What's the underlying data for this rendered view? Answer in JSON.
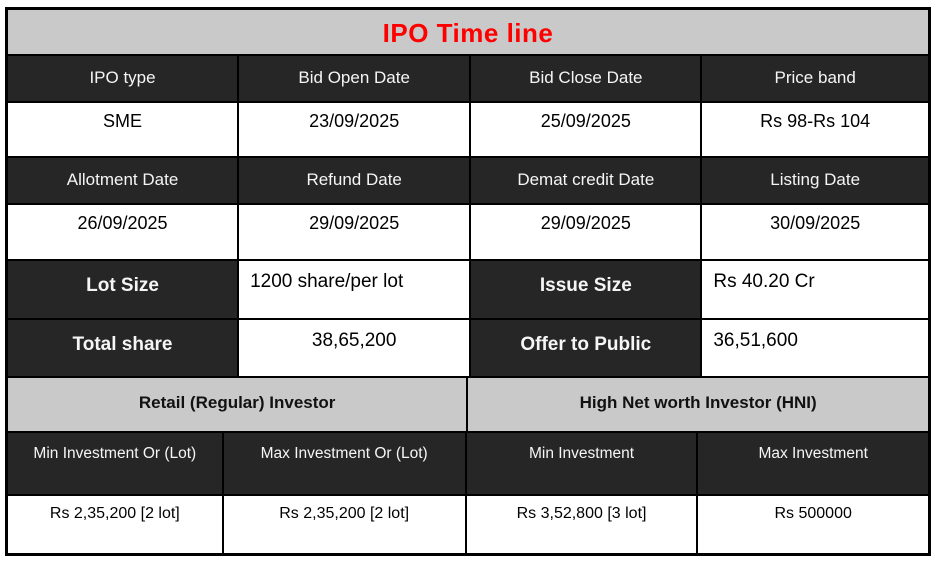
{
  "title": "IPO Time line",
  "colors": {
    "title_red": "#ff0000",
    "dark_cell": "#262626",
    "gray_cell": "#c9c9c9",
    "grid_line": "#000000"
  },
  "chart_data": {
    "type": "table",
    "title": "IPO Time line",
    "layout": "10 rows; black gridlines; dark header rows with white text; gray section bands",
    "rows": [
      [
        "IPO type",
        "Bid Open Date",
        "Bid Close Date",
        "Price band"
      ],
      [
        "SME",
        "23/09/2025",
        "25/09/2025",
        "Rs 98-Rs 104"
      ],
      [
        "Allotment Date",
        "Refund Date",
        "Demat credit Date",
        "Listing Date"
      ],
      [
        "26/09/2025",
        "29/09/2025",
        "29/09/2025",
        "30/09/2025"
      ],
      [
        "Lot Size",
        "1200 share/per lot",
        "Issue Size",
        "Rs 40.20 Cr"
      ],
      [
        "Total share",
        "38,65,200",
        "Offer to Public",
        "36,51,600"
      ],
      [
        "Retail (Regular) Investor",
        "High Net worth Investor (HNI)"
      ],
      [
        "Min Investment Or (Lot)",
        "Max Investment Or (Lot)",
        "Min Investment",
        "Max Investment"
      ],
      [
        "Rs 2,35,200 [2 lot]",
        "Rs 2,35,200 [2 lot]",
        "Rs 3,52,800 [3 lot]",
        "Rs 500000"
      ]
    ]
  }
}
